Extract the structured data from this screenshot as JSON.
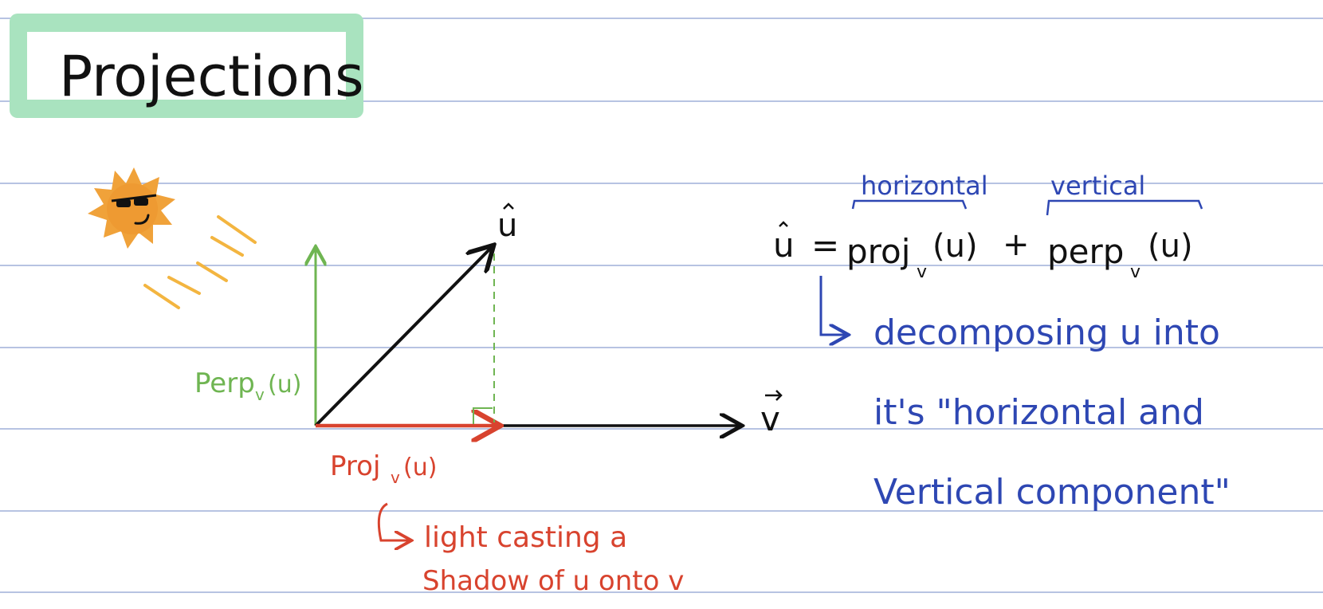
{
  "title": "Projections",
  "colors": {
    "rule_line": "#b7c3e2",
    "title_box": "#a9e3bf",
    "ink_black": "#111111",
    "ink_green": "#6fb552",
    "ink_red": "#d8432e",
    "ink_blue": "#2e47b3",
    "sun": "#f0a23a",
    "sun_rays": "#f3b540"
  },
  "diagram": {
    "u_label": "u",
    "v_label": "v",
    "perp_label": "Perp",
    "perp_sub": "v",
    "perp_arg": "(u)",
    "proj_label": "Proj",
    "proj_sub": "v",
    "proj_arg": "(u)",
    "shadow_note_line1": "light casting a",
    "shadow_note_line2": "Shadow of u onto v"
  },
  "equation": {
    "brace_left_label": "horizontal",
    "brace_right_label": "vertical",
    "lhs": "u",
    "equals": "=",
    "proj": "proj",
    "sub": "v",
    "proj_arg": "(u)",
    "plus": "+",
    "perp": "perp",
    "perp_arg": "(u)",
    "note_line1": "decomposing u into",
    "note_line2": "it's \"horizontal and",
    "note_line3": "Vertical component\""
  }
}
